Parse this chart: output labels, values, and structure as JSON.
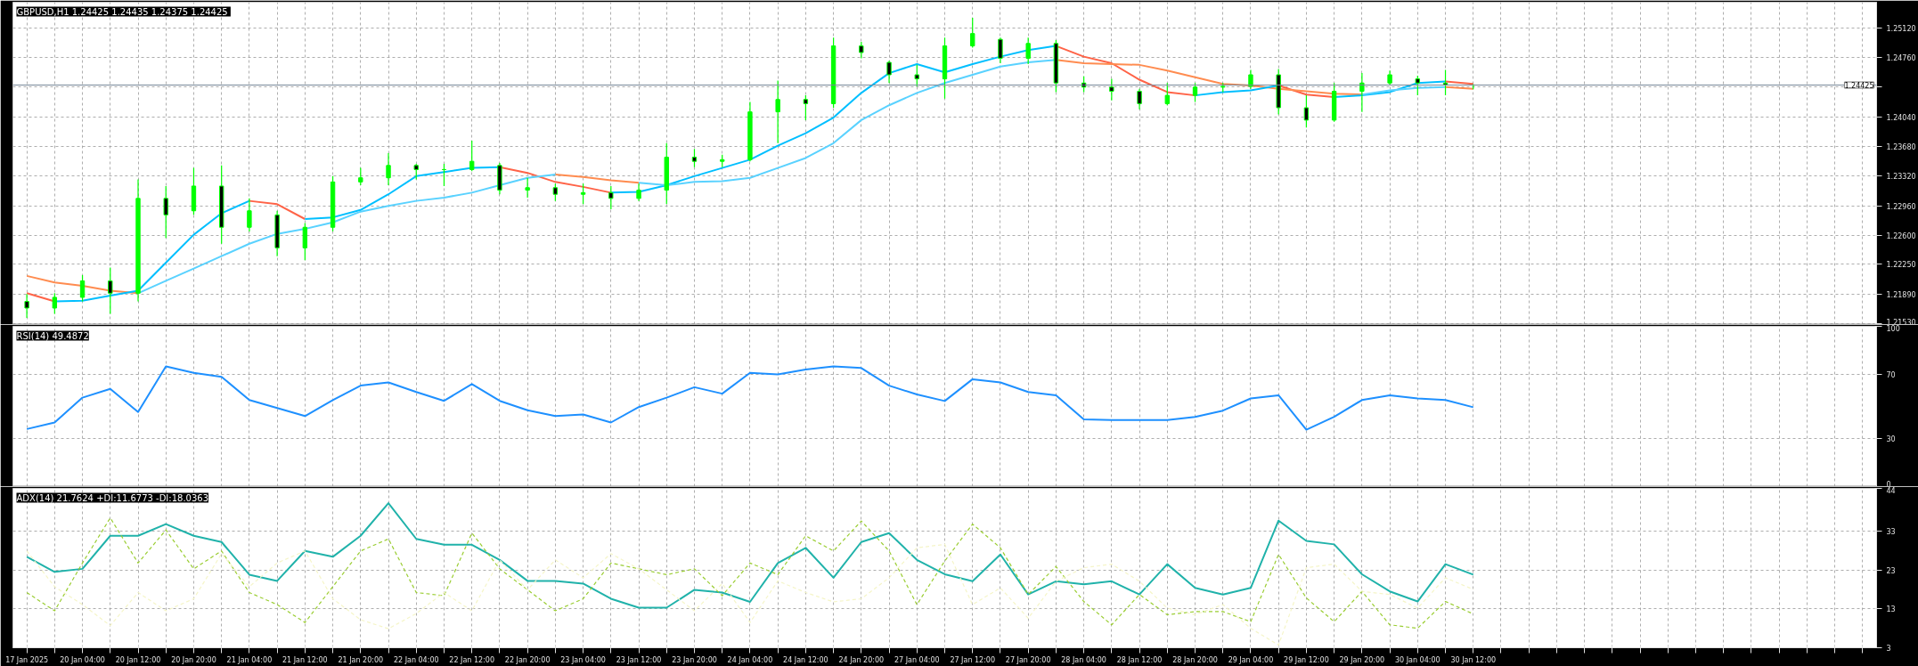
{
  "chart_data": [
    {
      "type": "candlestick",
      "title": "GBPUSD,H1  1.24425 1.24435 1.24375 1.24425",
      "color": "#00ff00",
      "grid": true,
      "tick_labels": "y",
      "categories": [
        null,
        null,
        null,
        null,
        null,
        null,
        null,
        null,
        null,
        null,
        null,
        null,
        null,
        null,
        null,
        null,
        null,
        null,
        null,
        null,
        null,
        null,
        null,
        null,
        null,
        null,
        null,
        null,
        null,
        null,
        null,
        null,
        null,
        null,
        null,
        null,
        null,
        null,
        null,
        null,
        null,
        null,
        null,
        null,
        null,
        null,
        null,
        null,
        null,
        null,
        null,
        null,
        null,
        null,
        null,
        null,
        null,
        null,
        null,
        null,
        null,
        null,
        null,
        null,
        null,
        null,
        null
      ],
      "ohlc": [
        [
          1.218,
          1.2189,
          1.216,
          1.2172
        ],
        [
          1.2172,
          1.219,
          1.2165,
          1.2185
        ],
        [
          1.2185,
          1.2212,
          1.218,
          1.2205
        ],
        [
          1.2205,
          1.2221,
          1.2165,
          1.219
        ],
        [
          1.219,
          1.2328,
          1.218,
          1.2305
        ],
        [
          1.2305,
          1.232,
          1.2257,
          1.2285
        ],
        [
          1.229,
          1.2342,
          1.2285,
          1.232
        ],
        [
          1.232,
          1.2345,
          1.225,
          1.227
        ],
        [
          1.227,
          1.2305,
          1.2265,
          1.229
        ],
        [
          1.2285,
          1.229,
          1.2235,
          1.2245
        ],
        [
          1.2245,
          1.2275,
          1.223,
          1.227
        ],
        [
          1.227,
          1.2332,
          1.2265,
          1.2325
        ],
        [
          1.2325,
          1.2342,
          1.2321,
          1.233
        ],
        [
          1.233,
          1.236,
          1.2321,
          1.2345
        ],
        [
          1.2345,
          1.2347,
          1.2328,
          1.234
        ],
        [
          1.234,
          1.2347,
          1.232,
          1.234
        ],
        [
          1.234,
          1.2375,
          1.2338,
          1.235
        ],
        [
          1.2345,
          1.2348,
          1.231,
          1.2315
        ],
        [
          1.2315,
          1.233,
          1.2306,
          1.2318
        ],
        [
          1.2318,
          1.2323,
          1.2302,
          1.231
        ],
        [
          1.231,
          1.2323,
          1.2298,
          1.2312
        ],
        [
          1.2312,
          1.232,
          1.2292,
          1.2305
        ],
        [
          1.2305,
          1.2323,
          1.2302,
          1.2315
        ],
        [
          1.2315,
          1.2372,
          1.2298,
          1.2355
        ],
        [
          1.2355,
          1.2365,
          1.2343,
          1.235
        ],
        [
          1.235,
          1.2358,
          1.2343,
          1.2352
        ],
        [
          1.2352,
          1.2422,
          1.235,
          1.241
        ],
        [
          1.241,
          1.2448,
          1.2372,
          1.2425
        ],
        [
          1.2425,
          1.243,
          1.24,
          1.242
        ],
        [
          1.242,
          1.25,
          1.2415,
          1.249
        ],
        [
          1.249,
          1.2495,
          1.2475,
          1.2482
        ],
        [
          1.247,
          1.2472,
          1.2445,
          1.2455
        ],
        [
          1.2455,
          1.2467,
          1.2441,
          1.245
        ],
        [
          1.245,
          1.25,
          1.2426,
          1.249
        ],
        [
          1.249,
          1.2524,
          1.2488,
          1.2505
        ],
        [
          1.2498,
          1.25,
          1.2469,
          1.2475
        ],
        [
          1.2475,
          1.25,
          1.2468,
          1.2493
        ],
        [
          1.2493,
          1.2497,
          1.2434,
          1.2445
        ],
        [
          1.2445,
          1.2453,
          1.2434,
          1.244
        ],
        [
          1.244,
          1.245,
          1.2424,
          1.2435
        ],
        [
          1.2435,
          1.2438,
          1.2413,
          1.242
        ],
        [
          1.242,
          1.2445,
          1.2418,
          1.243
        ],
        [
          1.243,
          1.2445,
          1.2422,
          1.244
        ],
        [
          1.244,
          1.2445,
          1.2434,
          1.2441
        ],
        [
          1.2441,
          1.2461,
          1.2438,
          1.2455
        ],
        [
          1.2455,
          1.2462,
          1.2407,
          1.2415
        ],
        [
          1.2415,
          1.243,
          1.2391,
          1.24
        ],
        [
          1.24,
          1.2445,
          1.2398,
          1.2435
        ],
        [
          1.2435,
          1.2457,
          1.241,
          1.2445
        ],
        [
          1.2445,
          1.246,
          1.2443,
          1.2455
        ],
        [
          1.245,
          1.2454,
          1.243,
          1.2445
        ],
        [
          1.2445,
          1.2461,
          1.243,
          1.2443
        ],
        [
          1.24425,
          1.24435,
          1.24375,
          1.24425
        ],
        null,
        null,
        null,
        null,
        null,
        null,
        null,
        null,
        null,
        null,
        null,
        null,
        null,
        null
      ],
      "series": [
        {
          "type": "line",
          "color": "#ff6347",
          "values": [
            1.219,
            1.218,
            null,
            null,
            null,
            null,
            null,
            null,
            1.2302,
            1.2298,
            1.228,
            null,
            null,
            null,
            null,
            null,
            null,
            1.2343,
            1.2336,
            1.2325,
            1.2319,
            1.2312,
            null,
            null,
            null,
            null,
            null,
            null,
            null,
            null,
            null,
            null,
            null,
            null,
            null,
            null,
            null,
            1.249,
            1.2477,
            1.2469,
            1.2449,
            1.2434,
            1.243,
            null,
            null,
            1.2442,
            1.2431,
            1.2428,
            null,
            null,
            null,
            1.2447,
            1.2444,
            null,
            null,
            null,
            null,
            null,
            null,
            null,
            null,
            null,
            null,
            null,
            null,
            null,
            null
          ]
        },
        {
          "type": "line",
          "color": "#ff8c50",
          "values": [
            1.2211,
            1.2203,
            1.2199,
            1.2193,
            1.219,
            null,
            null,
            null,
            null,
            null,
            null,
            null,
            null,
            null,
            null,
            null,
            null,
            null,
            null,
            1.2334,
            1.2331,
            1.2327,
            1.2324,
            null,
            null,
            null,
            null,
            null,
            null,
            null,
            null,
            null,
            null,
            null,
            null,
            null,
            null,
            1.2473,
            1.2469,
            1.2468,
            1.2467,
            1.246,
            1.2452,
            1.2444,
            1.2442,
            1.2438,
            1.2435,
            1.2432,
            1.2431,
            null,
            null,
            1.244,
            1.2438,
            null,
            null,
            null,
            null,
            null,
            null,
            null,
            null,
            null,
            null,
            null,
            null,
            null,
            null
          ]
        },
        {
          "type": "line",
          "color": "#00bfff",
          "values": [
            null,
            1.218,
            1.2181,
            1.2187,
            1.2193,
            1.2227,
            1.2261,
            1.2287,
            1.2302,
            null,
            1.228,
            1.2282,
            1.2291,
            1.231,
            1.2332,
            1.2337,
            1.2342,
            1.2343,
            null,
            null,
            null,
            1.2312,
            1.2313,
            1.2321,
            1.2332,
            1.2342,
            1.2352,
            1.2369,
            1.2384,
            1.2403,
            1.2433,
            1.2457,
            1.2468,
            1.2458,
            1.2468,
            1.2477,
            1.2485,
            1.249,
            null,
            null,
            null,
            null,
            1.243,
            1.2434,
            1.2436,
            1.2442,
            null,
            1.2428,
            1.243,
            1.2434,
            1.2445,
            1.2447,
            null,
            null,
            null,
            null,
            null,
            null,
            null,
            null,
            null,
            null,
            null,
            null,
            null,
            null,
            null
          ]
        },
        {
          "type": "line",
          "color": "#5ad2ff",
          "values": [
            null,
            null,
            null,
            null,
            1.219,
            1.2205,
            1.222,
            1.2235,
            1.225,
            1.2262,
            1.2268,
            1.2276,
            1.2289,
            1.2296,
            1.2302,
            1.2306,
            1.2312,
            1.2321,
            1.233,
            1.2334,
            null,
            null,
            1.2324,
            1.2321,
            1.2325,
            1.2326,
            1.233,
            1.2342,
            1.2354,
            1.2372,
            1.24,
            1.2418,
            1.2433,
            1.2445,
            1.2455,
            1.2465,
            1.247,
            1.2473,
            null,
            null,
            null,
            null,
            null,
            null,
            null,
            null,
            null,
            null,
            1.2431,
            1.2436,
            1.2439,
            1.244,
            null,
            null,
            null,
            null,
            null,
            null,
            null,
            null,
            null,
            null,
            null,
            null,
            null,
            null,
            null
          ]
        }
      ],
      "ref_lines": [
        {
          "axis": "y",
          "value": 1.24425,
          "label": "1.24425",
          "color": "#778899"
        }
      ],
      "ylim": [
        1.2152,
        1.2543
      ],
      "yticks": [
        {
          "value": 1.2153,
          "label": "1.21530"
        },
        {
          "value": 1.2189,
          "label": "1.21890"
        },
        {
          "value": 1.2225,
          "label": "1.22250"
        },
        {
          "value": 1.226,
          "label": "1.22600"
        },
        {
          "value": 1.2296,
          "label": "1.22960"
        },
        {
          "value": 1.2332,
          "label": "1.23320"
        },
        {
          "value": 1.2368,
          "label": "1.23680"
        },
        {
          "value": 1.2404,
          "label": "1.24040"
        },
        {
          "value": 1.244,
          "label": null
        },
        {
          "value": 1.2476,
          "label": "1.24760"
        },
        {
          "value": 1.2512,
          "label": "1.25120"
        }
      ]
    },
    {
      "type": "line",
      "title": "RSI(14) 49.4872",
      "grid": true,
      "tick_labels": "y",
      "categories": [
        null,
        null,
        null,
        null,
        null,
        null,
        null,
        null,
        null,
        null,
        null,
        null,
        null,
        null,
        null,
        null,
        null,
        null,
        null,
        null,
        null,
        null,
        null,
        null,
        null,
        null,
        null,
        null,
        null,
        null,
        null,
        null,
        null,
        null,
        null,
        null,
        null,
        null,
        null,
        null,
        null,
        null,
        null,
        null,
        null,
        null,
        null,
        null,
        null,
        null,
        null,
        null,
        null,
        null,
        null,
        null,
        null,
        null,
        null,
        null,
        null,
        null,
        null,
        null,
        null,
        null,
        null
      ],
      "series": [
        {
          "color": "#1e90ff",
          "values": [
            35.9,
            40,
            55.5,
            61,
            46.5,
            75,
            71,
            68.5,
            54,
            49,
            44,
            54,
            63,
            65,
            59,
            53.5,
            64,
            53.5,
            47.6,
            44,
            45,
            40,
            49.6,
            55.5,
            62,
            58,
            71,
            70,
            73,
            75,
            74,
            63,
            57.5,
            53.4,
            67,
            65,
            59,
            57,
            42,
            41.5,
            41.5,
            41.5,
            43.5,
            47.4,
            55,
            57,
            35.5,
            43.5,
            54,
            57,
            55,
            54,
            49.5,
            null,
            null,
            null,
            null,
            null,
            null,
            null,
            null,
            null,
            null,
            null,
            null,
            null,
            null
          ]
        }
      ],
      "ylim": [
        0,
        100
      ],
      "yticks": [
        0,
        30,
        70,
        100
      ]
    },
    {
      "type": "line",
      "title": "ADX(14) 21.7624 +DI:11.6773 -DI:18.0363",
      "grid": true,
      "categories": [
        "17 Jan 2025",
        null,
        "20 Jan 04:00",
        null,
        "20 Jan 12:00",
        null,
        "20 Jan 20:00",
        null,
        "21 Jan 04:00",
        null,
        "21 Jan 12:00",
        null,
        "21 Jan 20:00",
        null,
        "22 Jan 04:00",
        null,
        "22 Jan 12:00",
        null,
        "22 Jan 20:00",
        null,
        "23 Jan 04:00",
        null,
        "23 Jan 12:00",
        null,
        "23 Jan 20:00",
        null,
        "24 Jan 04:00",
        null,
        "24 Jan 12:00",
        null,
        "24 Jan 20:00",
        null,
        "27 Jan 04:00",
        null,
        "27 Jan 12:00",
        null,
        "27 Jan 20:00",
        null,
        "28 Jan 04:00",
        null,
        "28 Jan 12:00",
        null,
        "28 Jan 20:00",
        null,
        "29 Jan 04:00",
        null,
        "29 Jan 12:00",
        null,
        "29 Jan 20:00",
        null,
        "30 Jan 04:00",
        null,
        "30 Jan 12:00",
        null,
        null,
        null,
        null,
        null,
        null,
        null,
        null,
        null,
        null,
        null,
        null,
        null,
        null
      ],
      "series": [
        {
          "color": "#20b2aa",
          "line_style": "solid",
          "values": [
            26.4,
            22.5,
            23.3,
            31.8,
            31.8,
            34.8,
            31.8,
            30.2,
            21.8,
            20.2,
            27.9,
            26.4,
            31.8,
            40.2,
            31,
            29.5,
            29.5,
            25.6,
            20.2,
            20.2,
            19.5,
            15.6,
            13.3,
            13.3,
            17.9,
            17.2,
            14.8,
            24.8,
            28.7,
            21,
            30.2,
            32.5,
            25.6,
            21.9,
            20.1,
            27,
            16.7,
            20.1,
            19.3,
            20.1,
            16.7,
            24.5,
            18.4,
            16.7,
            18.4,
            35.7,
            30.5,
            29.6,
            21.9,
            17.5,
            14.9,
            24.5,
            21.8,
            null,
            null,
            null,
            null,
            null,
            null,
            null,
            null,
            null,
            null,
            null,
            null,
            null,
            null
          ]
        },
        {
          "color": "#9acd32",
          "line_style": "dashed",
          "values": [
            17.2,
            12.5,
            24.8,
            36.4,
            24.8,
            33.3,
            23.3,
            27.9,
            17.2,
            14.1,
            9.5,
            18.7,
            27.9,
            31,
            17.2,
            16.4,
            32.5,
            23.3,
            17.9,
            12.5,
            15.6,
            24.8,
            23.3,
            21.8,
            23.3,
            16.4,
            24.8,
            21.8,
            31.8,
            27.9,
            35.6,
            27.9,
            14.1,
            25.3,
            34.8,
            28.7,
            16.7,
            23.9,
            14.9,
            8.9,
            16.7,
            11.5,
            12.3,
            12.3,
            9.7,
            27,
            15.8,
            9.7,
            17.5,
            8.9,
            8,
            14.9,
            11.7,
            null,
            null,
            null,
            null,
            null,
            null,
            null,
            null,
            null,
            null,
            null,
            null,
            null,
            null
          ]
        },
        {
          "color": "#f5f5c8",
          "line_style": "dashed",
          "values": [
            27.9,
            18.7,
            14.1,
            8.7,
            17.2,
            12.5,
            15.6,
            27.2,
            18.7,
            24.8,
            27.9,
            15.6,
            10.2,
            7.9,
            11.8,
            17.2,
            12.5,
            25.6,
            17.9,
            25.6,
            21,
            27.2,
            23.3,
            17.9,
            12.5,
            19.5,
            9.5,
            20.2,
            17.2,
            14.8,
            15.6,
            21,
            28.7,
            29.6,
            14.1,
            18.4,
            10.6,
            20.1,
            23.6,
            24.5,
            20.1,
            13.2,
            11.5,
            14.1,
            8,
            3.7,
            23.6,
            24.5,
            17.5,
            16.7,
            13.2,
            21,
            18,
            null,
            null,
            null,
            null,
            null,
            null,
            null,
            null,
            null,
            null,
            null,
            null,
            null,
            null
          ]
        }
      ],
      "ylim": [
        3,
        44
      ],
      "yticks": [
        3,
        13,
        23,
        33,
        44
      ]
    }
  ]
}
